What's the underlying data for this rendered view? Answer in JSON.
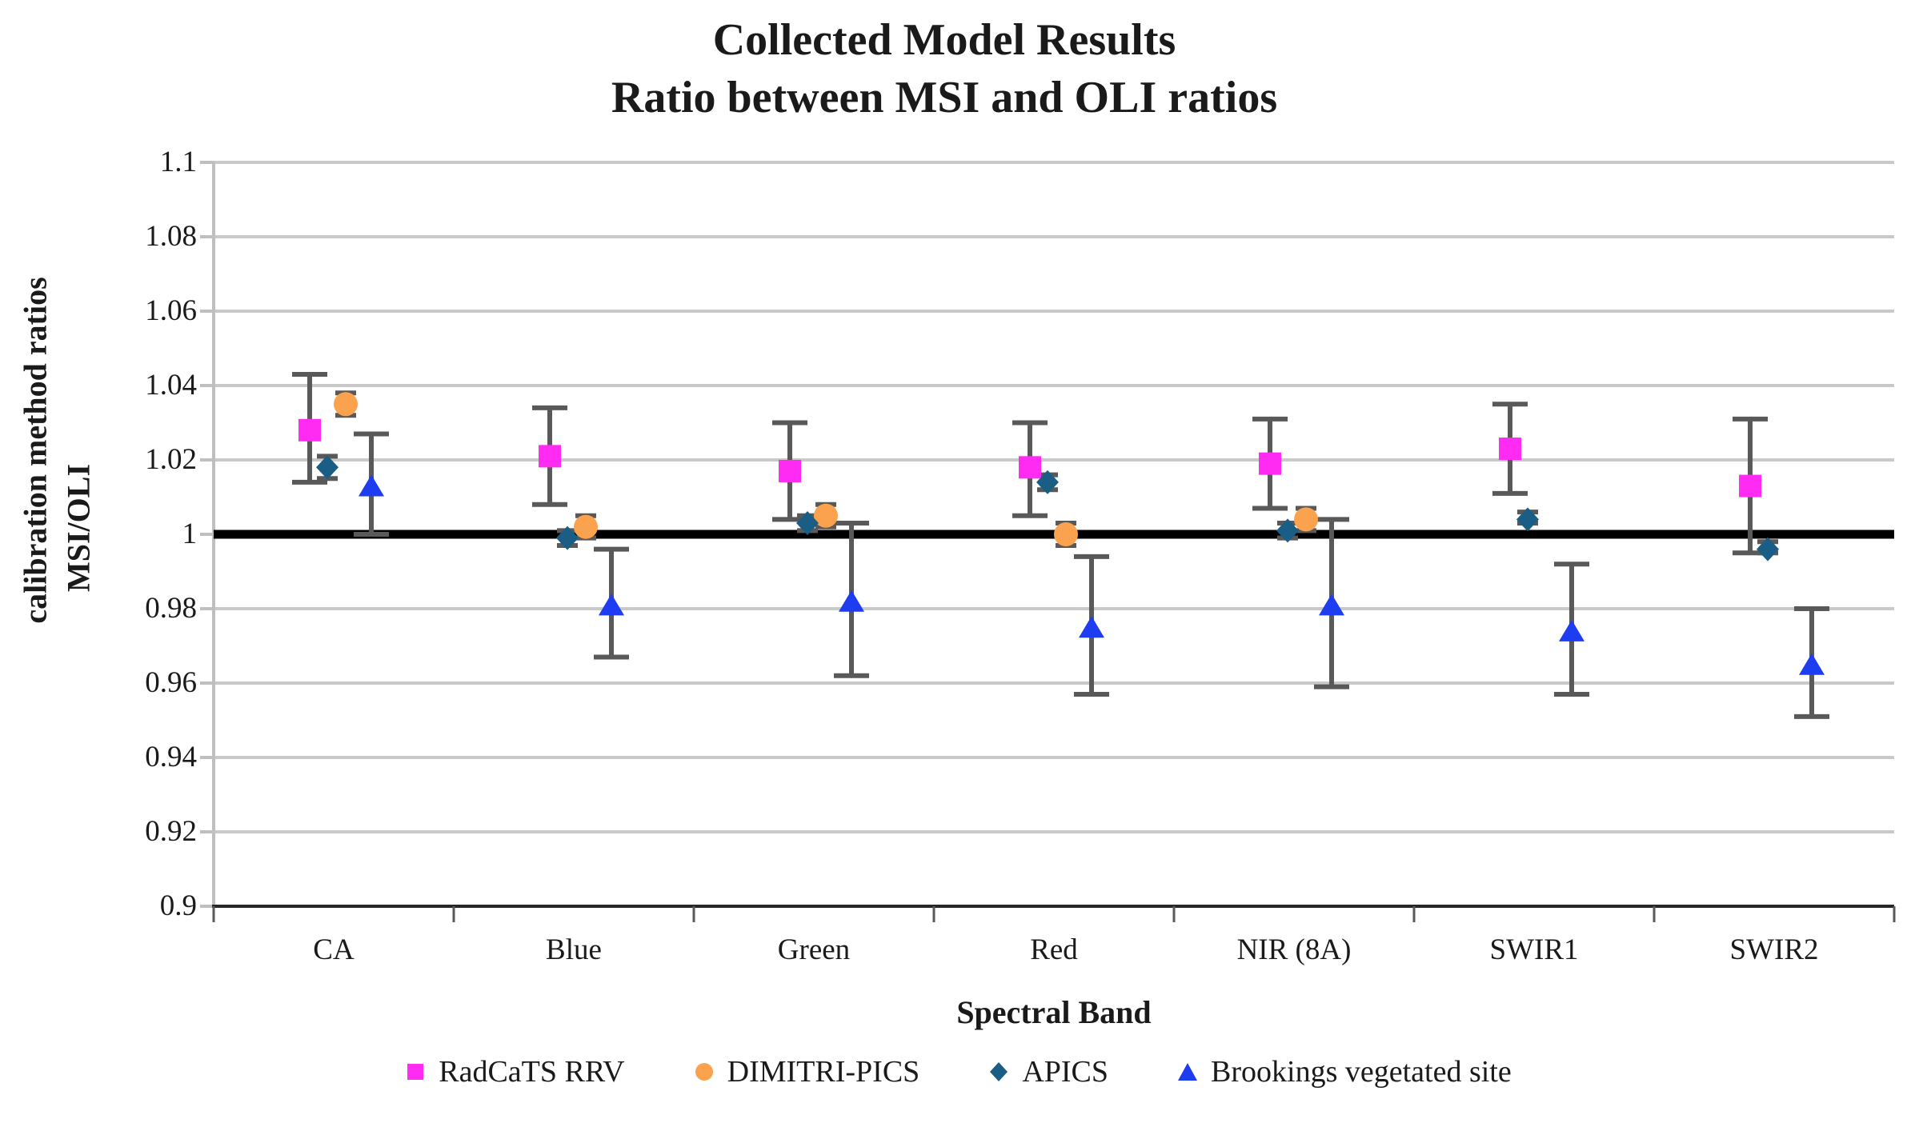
{
  "chart_data": {
    "type": "scatter",
    "title": "Collected Model Results",
    "subtitle": "Ratio between MSI and OLI ratios",
    "xlabel": "Spectral Band",
    "ylabel_line1": "calibration method ratios",
    "ylabel_line2": "MSI/OLI",
    "ylim": [
      0.9,
      1.1
    ],
    "y_tick_labels": [
      "1.1",
      "1.08",
      "1.06",
      "1.04",
      "1.02",
      "1",
      "0.98",
      "0.96",
      "0.94",
      "0.92",
      "0.9"
    ],
    "categories": [
      "CA",
      "Blue",
      "Green",
      "Red",
      "NIR (8A)",
      "SWIR1",
      "SWIR2"
    ],
    "grid": true,
    "legend_position": "bottom",
    "reference_line": 1.0,
    "style": {
      "reference_line_color": "#000000",
      "error_bar_color": "#595959",
      "gridline_color": "#c9c9c9",
      "x_axis_color": "#262626",
      "y_axis_color": "#bfbfbf"
    },
    "series": [
      {
        "name": "RadCaTS RRV",
        "marker": "square",
        "color": "#FF2BF2",
        "points": [
          {
            "band": "CA",
            "y": 1.028,
            "lo": 1.014,
            "hi": 1.043
          },
          {
            "band": "Blue",
            "y": 1.021,
            "lo": 1.008,
            "hi": 1.034
          },
          {
            "band": "Green",
            "y": 1.017,
            "lo": 1.004,
            "hi": 1.03
          },
          {
            "band": "Red",
            "y": 1.018,
            "lo": 1.005,
            "hi": 1.03
          },
          {
            "band": "NIR (8A)",
            "y": 1.019,
            "lo": 1.007,
            "hi": 1.031
          },
          {
            "band": "SWIR1",
            "y": 1.023,
            "lo": 1.011,
            "hi": 1.035
          },
          {
            "band": "SWIR2",
            "y": 1.013,
            "lo": 0.995,
            "hi": 1.031
          }
        ]
      },
      {
        "name": "DIMITRI-PICS",
        "marker": "circle",
        "color": "#FAA24E",
        "points": [
          {
            "band": "CA",
            "y": 1.035,
            "lo": 1.032,
            "hi": 1.038
          },
          {
            "band": "Blue",
            "y": 1.002,
            "lo": 0.999,
            "hi": 1.005
          },
          {
            "band": "Green",
            "y": 1.005,
            "lo": 1.002,
            "hi": 1.008
          },
          {
            "band": "Red",
            "y": 1.0,
            "lo": 0.997,
            "hi": 1.003
          },
          {
            "band": "NIR (8A)",
            "y": 1.004,
            "lo": 1.001,
            "hi": 1.007
          }
        ]
      },
      {
        "name": "APICS",
        "marker": "diamond",
        "color": "#1A5E86",
        "points": [
          {
            "band": "CA",
            "y": 1.018,
            "lo": 1.015,
            "hi": 1.021
          },
          {
            "band": "Blue",
            "y": 0.999,
            "lo": 0.997,
            "hi": 1.001
          },
          {
            "band": "Green",
            "y": 1.003,
            "lo": 1.001,
            "hi": 1.005
          },
          {
            "band": "Red",
            "y": 1.014,
            "lo": 1.012,
            "hi": 1.016
          },
          {
            "band": "NIR (8A)",
            "y": 1.001,
            "lo": 0.999,
            "hi": 1.003
          },
          {
            "band": "SWIR1",
            "y": 1.004,
            "lo": 1.003,
            "hi": 1.006
          },
          {
            "band": "SWIR2",
            "y": 0.996,
            "lo": 0.995,
            "hi": 0.998
          }
        ]
      },
      {
        "name": "Brookings vegetated site",
        "marker": "triangle",
        "color": "#1E3CF0",
        "points": [
          {
            "band": "CA",
            "y": 1.013,
            "lo": 1.0,
            "hi": 1.027
          },
          {
            "band": "Blue",
            "y": 0.981,
            "lo": 0.967,
            "hi": 0.996
          },
          {
            "band": "Green",
            "y": 0.982,
            "lo": 0.962,
            "hi": 1.003
          },
          {
            "band": "Red",
            "y": 0.975,
            "lo": 0.957,
            "hi": 0.994
          },
          {
            "band": "NIR (8A)",
            "y": 0.981,
            "lo": 0.959,
            "hi": 1.004
          },
          {
            "band": "SWIR1",
            "y": 0.974,
            "lo": 0.957,
            "hi": 0.992
          },
          {
            "band": "SWIR2",
            "y": 0.965,
            "lo": 0.951,
            "hi": 0.98
          }
        ]
      }
    ]
  }
}
